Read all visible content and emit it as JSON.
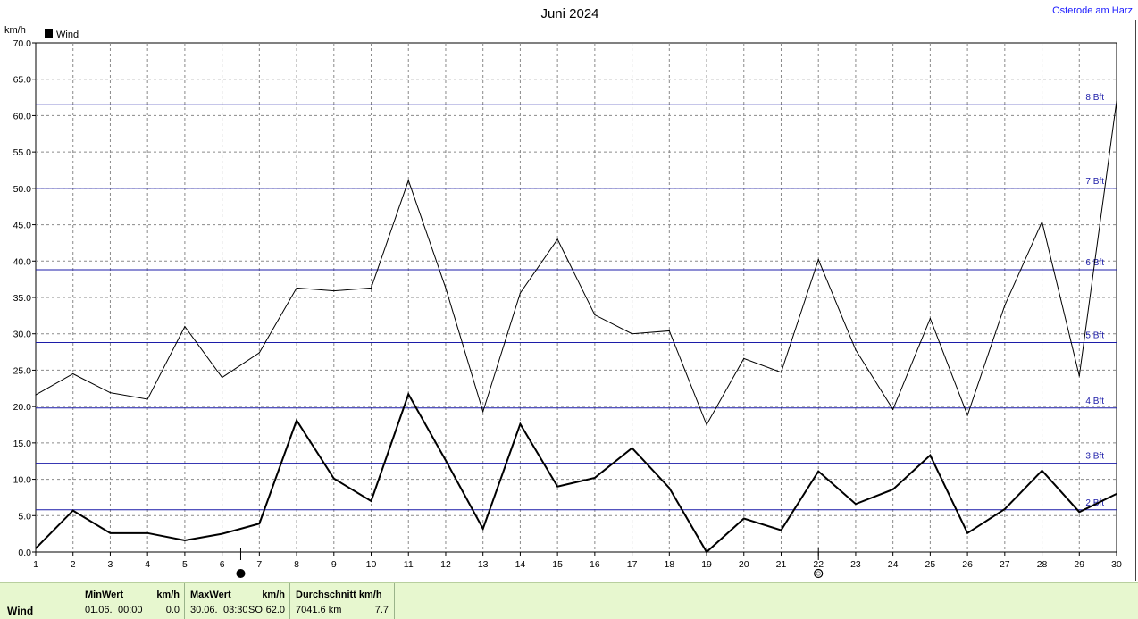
{
  "chart_data": {
    "type": "line",
    "title": "Juni 2024",
    "station": "Osterode am Harz",
    "ylabel": "km/h",
    "ylim": [
      0,
      70
    ],
    "yticks": [
      "0.0",
      "5.0",
      "10.0",
      "15.0",
      "20.0",
      "25.0",
      "30.0",
      "35.0",
      "40.0",
      "45.0",
      "50.0",
      "55.0",
      "60.0",
      "65.0",
      "70.0"
    ],
    "x": [
      1,
      2,
      3,
      4,
      5,
      6,
      7,
      8,
      9,
      10,
      11,
      12,
      13,
      14,
      15,
      16,
      17,
      18,
      19,
      20,
      21,
      22,
      23,
      24,
      25,
      26,
      27,
      28,
      29,
      30
    ],
    "grid": true,
    "legend": {
      "position": "top-left",
      "entries": [
        {
          "name": "Wind",
          "color": "#000000"
        }
      ]
    },
    "series": [
      {
        "name": "Wind",
        "kind": "average",
        "color": "#000000",
        "values": [
          0.5,
          5.7,
          2.6,
          2.6,
          1.6,
          2.5,
          3.9,
          18.1,
          10.1,
          7.0,
          21.7,
          12.6,
          3.2,
          17.6,
          9.0,
          10.2,
          14.3,
          8.8,
          0.0,
          4.6,
          3.0,
          11.1,
          6.6,
          8.6,
          13.3,
          2.6,
          5.9,
          11.2,
          5.5,
          8.0
        ]
      },
      {
        "kind": "gust",
        "color": "#000000",
        "values": [
          21.6,
          24.5,
          21.9,
          21.0,
          31.0,
          24.0,
          27.4,
          36.3,
          35.9,
          36.3,
          51.1,
          36.3,
          19.3,
          35.6,
          43.0,
          32.6,
          30.0,
          30.4,
          17.5,
          26.6,
          24.7,
          40.2,
          27.8,
          19.6,
          32.1,
          18.8,
          33.9,
          45.4,
          24.2,
          62.0
        ]
      }
    ],
    "reference_lines": [
      {
        "label": "2 Bft",
        "value": 5.8
      },
      {
        "label": "3 Bft",
        "value": 12.2
      },
      {
        "label": "4 Bft",
        "value": 19.8
      },
      {
        "label": "5 Bft",
        "value": 28.8
      },
      {
        "label": "6 Bft",
        "value": 38.8
      },
      {
        "label": "7 Bft",
        "value": 50.0
      },
      {
        "label": "8 Bft",
        "value": 61.5
      }
    ],
    "moon_markers": [
      {
        "day": 6.5,
        "phase": "new-moon"
      },
      {
        "day": 22,
        "phase": "full-moon"
      }
    ]
  },
  "footer": {
    "series_label": "Wind",
    "min": {
      "title": "MinWert",
      "unit": "km/h",
      "date": "01.06.",
      "time": "00:00",
      "value": "0.0"
    },
    "max": {
      "title": "MaxWert",
      "unit": "km/h",
      "date": "30.06.",
      "time": "03:30",
      "dir": "SO",
      "value": "62.0"
    },
    "avg": {
      "title": "Durchschnitt km/h",
      "distance": "7041.6 km",
      "value": "7.7"
    }
  }
}
